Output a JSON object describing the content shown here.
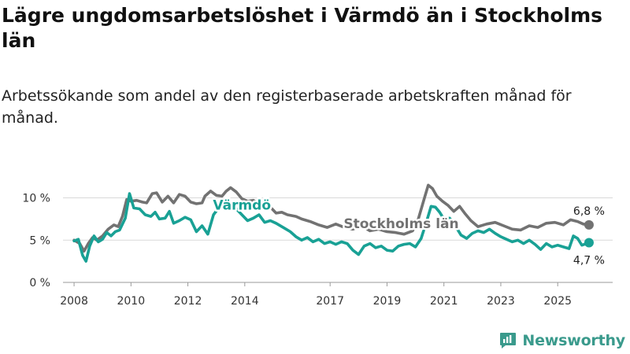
{
  "title": "Lägre ungdomsarbetslöshet i Värmdö än i Stockholms län",
  "subtitle": "Arbetssökande som andel av den registerbaserade arbetskraften månad för månad.",
  "brand": {
    "name": "Newsworthy",
    "color": "#3a9a8c",
    "icon": "newsworthy-logo-icon"
  },
  "chart_data": {
    "type": "line",
    "xlim": [
      2007.5,
      2026.6
    ],
    "ylim": [
      0,
      12
    ],
    "x_ticks": [
      {
        "value": 2008,
        "label": "2008"
      },
      {
        "value": 2010,
        "label": "2010"
      },
      {
        "value": 2012,
        "label": "2012"
      },
      {
        "value": 2014,
        "label": "2014"
      },
      {
        "value": 2017,
        "label": "2017"
      },
      {
        "value": 2019,
        "label": "2019"
      },
      {
        "value": 2021,
        "label": "2021"
      },
      {
        "value": 2023,
        "label": "2023"
      },
      {
        "value": 2025,
        "label": "2025"
      }
    ],
    "y_ticks": [
      {
        "value": 0,
        "label": "0 %"
      },
      {
        "value": 5,
        "label": "5 %"
      },
      {
        "value": 10,
        "label": "10 %"
      }
    ],
    "grid": true,
    "series": [
      {
        "name": "Stockholms län",
        "color": "#727272",
        "end_label": "6,8 %",
        "points": [
          [
            2008.0,
            5.0
          ],
          [
            2008.2,
            4.6
          ],
          [
            2008.35,
            3.7
          ],
          [
            2008.5,
            4.6
          ],
          [
            2008.65,
            5.3
          ],
          [
            2008.8,
            5.0
          ],
          [
            2009.0,
            5.5
          ],
          [
            2009.2,
            6.3
          ],
          [
            2009.4,
            6.8
          ],
          [
            2009.55,
            6.6
          ],
          [
            2009.7,
            7.8
          ],
          [
            2009.85,
            9.8
          ],
          [
            2010.0,
            9.6
          ],
          [
            2010.2,
            9.7
          ],
          [
            2010.4,
            9.5
          ],
          [
            2010.55,
            9.4
          ],
          [
            2010.75,
            10.5
          ],
          [
            2010.9,
            10.6
          ],
          [
            2011.1,
            9.5
          ],
          [
            2011.3,
            10.2
          ],
          [
            2011.5,
            9.4
          ],
          [
            2011.7,
            10.4
          ],
          [
            2011.9,
            10.2
          ],
          [
            2012.1,
            9.5
          ],
          [
            2012.3,
            9.3
          ],
          [
            2012.5,
            9.4
          ],
          [
            2012.6,
            10.2
          ],
          [
            2012.8,
            10.8
          ],
          [
            2013.0,
            10.3
          ],
          [
            2013.2,
            10.2
          ],
          [
            2013.35,
            10.8
          ],
          [
            2013.5,
            11.2
          ],
          [
            2013.7,
            10.7
          ],
          [
            2013.9,
            9.9
          ],
          [
            2014.1,
            9.6
          ],
          [
            2014.3,
            9.7
          ],
          [
            2014.5,
            9.3
          ],
          [
            2014.7,
            8.6
          ],
          [
            2014.9,
            8.9
          ],
          [
            2015.1,
            8.2
          ],
          [
            2015.3,
            8.3
          ],
          [
            2015.5,
            8.0
          ],
          [
            2015.8,
            7.8
          ],
          [
            2016.0,
            7.5
          ],
          [
            2016.3,
            7.2
          ],
          [
            2016.6,
            6.8
          ],
          [
            2016.9,
            6.5
          ],
          [
            2017.2,
            6.9
          ],
          [
            2017.5,
            6.5
          ],
          [
            2017.8,
            6.3
          ],
          [
            2018.1,
            6.7
          ],
          [
            2018.4,
            6.1
          ],
          [
            2018.7,
            6.3
          ],
          [
            2019.0,
            6.0
          ],
          [
            2019.3,
            5.9
          ],
          [
            2019.6,
            5.7
          ],
          [
            2019.9,
            6.1
          ],
          [
            2020.1,
            7.5
          ],
          [
            2020.3,
            9.8
          ],
          [
            2020.45,
            11.5
          ],
          [
            2020.6,
            11.1
          ],
          [
            2020.75,
            10.2
          ],
          [
            2020.95,
            9.6
          ],
          [
            2021.15,
            9.1
          ],
          [
            2021.35,
            8.4
          ],
          [
            2021.55,
            9.0
          ],
          [
            2021.75,
            8.1
          ],
          [
            2021.95,
            7.3
          ],
          [
            2022.2,
            6.6
          ],
          [
            2022.5,
            6.9
          ],
          [
            2022.8,
            7.1
          ],
          [
            2023.1,
            6.7
          ],
          [
            2023.4,
            6.3
          ],
          [
            2023.7,
            6.2
          ],
          [
            2024.0,
            6.7
          ],
          [
            2024.3,
            6.5
          ],
          [
            2024.6,
            7.0
          ],
          [
            2024.9,
            7.1
          ],
          [
            2025.2,
            6.8
          ],
          [
            2025.45,
            7.4
          ],
          [
            2025.7,
            7.2
          ],
          [
            2025.9,
            6.9
          ],
          [
            2026.1,
            6.8
          ]
        ]
      },
      {
        "name": "Värmdö",
        "color": "#19a195",
        "end_label": "4,7 %",
        "points": [
          [
            2008.0,
            4.9
          ],
          [
            2008.15,
            5.1
          ],
          [
            2008.3,
            3.2
          ],
          [
            2008.42,
            2.5
          ],
          [
            2008.55,
            4.3
          ],
          [
            2008.7,
            5.5
          ],
          [
            2008.85,
            4.8
          ],
          [
            2009.0,
            5.1
          ],
          [
            2009.15,
            5.9
          ],
          [
            2009.3,
            5.5
          ],
          [
            2009.45,
            6.0
          ],
          [
            2009.6,
            6.2
          ],
          [
            2009.8,
            7.6
          ],
          [
            2009.95,
            10.5
          ],
          [
            2010.1,
            8.8
          ],
          [
            2010.3,
            8.7
          ],
          [
            2010.5,
            8.0
          ],
          [
            2010.7,
            7.8
          ],
          [
            2010.85,
            8.3
          ],
          [
            2011.0,
            7.5
          ],
          [
            2011.2,
            7.6
          ],
          [
            2011.35,
            8.4
          ],
          [
            2011.5,
            7.0
          ],
          [
            2011.7,
            7.3
          ],
          [
            2011.9,
            7.7
          ],
          [
            2012.1,
            7.4
          ],
          [
            2012.3,
            6.0
          ],
          [
            2012.5,
            6.7
          ],
          [
            2012.7,
            5.7
          ],
          [
            2012.9,
            8.0
          ],
          [
            2013.1,
            8.9
          ],
          [
            2013.3,
            9.3
          ],
          [
            2013.5,
            9.2
          ],
          [
            2013.7,
            8.7
          ],
          [
            2013.9,
            8.0
          ],
          [
            2014.1,
            7.3
          ],
          [
            2014.3,
            7.6
          ],
          [
            2014.5,
            8.0
          ],
          [
            2014.7,
            7.1
          ],
          [
            2014.9,
            7.3
          ],
          [
            2015.1,
            7.0
          ],
          [
            2015.4,
            6.4
          ],
          [
            2015.6,
            6.0
          ],
          [
            2015.8,
            5.4
          ],
          [
            2016.0,
            5.0
          ],
          [
            2016.2,
            5.3
          ],
          [
            2016.4,
            4.8
          ],
          [
            2016.6,
            5.1
          ],
          [
            2016.8,
            4.6
          ],
          [
            2017.0,
            4.8
          ],
          [
            2017.2,
            4.5
          ],
          [
            2017.4,
            4.8
          ],
          [
            2017.6,
            4.6
          ],
          [
            2017.8,
            3.8
          ],
          [
            2018.0,
            3.3
          ],
          [
            2018.2,
            4.3
          ],
          [
            2018.4,
            4.6
          ],
          [
            2018.6,
            4.1
          ],
          [
            2018.8,
            4.3
          ],
          [
            2019.0,
            3.8
          ],
          [
            2019.2,
            3.7
          ],
          [
            2019.4,
            4.3
          ],
          [
            2019.6,
            4.5
          ],
          [
            2019.8,
            4.6
          ],
          [
            2020.0,
            4.2
          ],
          [
            2020.2,
            5.2
          ],
          [
            2020.4,
            7.3
          ],
          [
            2020.55,
            9.0
          ],
          [
            2020.7,
            8.9
          ],
          [
            2020.85,
            8.3
          ],
          [
            2021.0,
            7.5
          ],
          [
            2021.2,
            7.6
          ],
          [
            2021.4,
            6.7
          ],
          [
            2021.6,
            5.6
          ],
          [
            2021.8,
            5.2
          ],
          [
            2022.0,
            5.8
          ],
          [
            2022.2,
            6.1
          ],
          [
            2022.4,
            5.9
          ],
          [
            2022.6,
            6.3
          ],
          [
            2022.8,
            5.8
          ],
          [
            2023.0,
            5.4
          ],
          [
            2023.2,
            5.1
          ],
          [
            2023.4,
            4.8
          ],
          [
            2023.6,
            5.0
          ],
          [
            2023.8,
            4.6
          ],
          [
            2024.0,
            5.0
          ],
          [
            2024.2,
            4.5
          ],
          [
            2024.4,
            3.9
          ],
          [
            2024.6,
            4.6
          ],
          [
            2024.8,
            4.2
          ],
          [
            2025.0,
            4.4
          ],
          [
            2025.2,
            4.2
          ],
          [
            2025.4,
            4.0
          ],
          [
            2025.55,
            5.5
          ],
          [
            2025.7,
            5.2
          ],
          [
            2025.85,
            4.4
          ],
          [
            2026.1,
            4.7
          ]
        ]
      }
    ],
    "inline_labels": [
      {
        "series": "Värmdö",
        "text": "Värmdö",
        "x": 2013.9,
        "y": 8.6
      },
      {
        "series": "Stockholms län",
        "text": "Stockholms län",
        "x": 2019.5,
        "y": 6.4
      }
    ]
  }
}
